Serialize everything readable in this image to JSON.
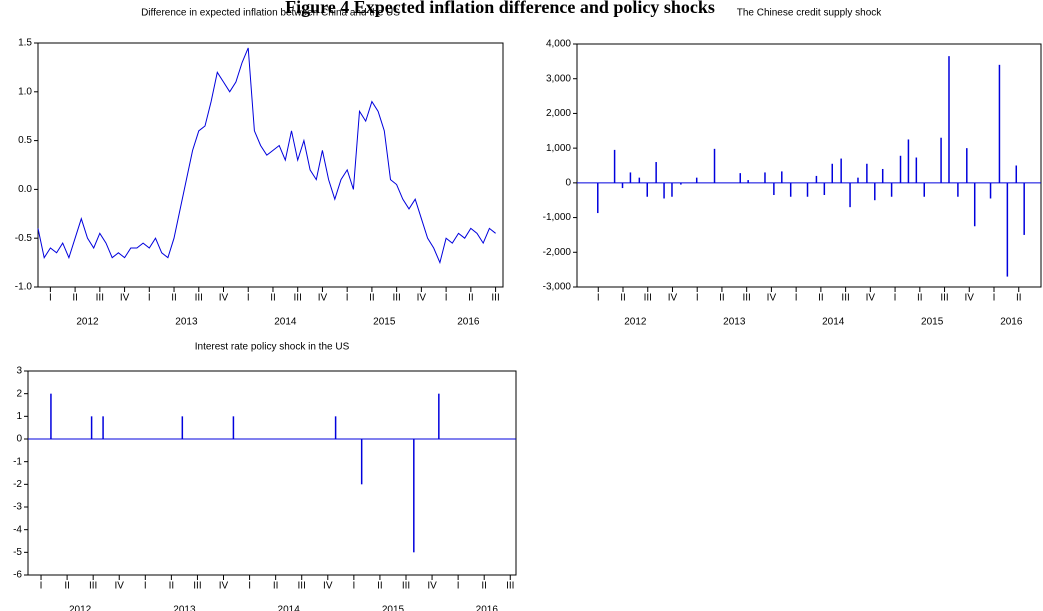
{
  "figure_title": "Figure 4 Expected inflation difference and policy shocks",
  "chart_data": [
    {
      "type": "line",
      "title": "Difference in expected inflation between China and the US",
      "color": "#0000dd",
      "x": [
        2012,
        2012.0625,
        2012.125,
        2012.1875,
        2012.25,
        2012.3125,
        2012.375,
        2012.4375,
        2012.5,
        2012.5625,
        2012.625,
        2012.6875,
        2012.75,
        2012.8125,
        2012.875,
        2012.9375,
        2013,
        2013.0625,
        2013.125,
        2013.1875,
        2013.25,
        2013.3125,
        2013.375,
        2013.4375,
        2013.5,
        2013.5625,
        2013.625,
        2013.6875,
        2013.75,
        2013.8125,
        2013.875,
        2013.9375,
        2014,
        2014.0625,
        2014.125,
        2014.1875,
        2014.25,
        2014.3125,
        2014.375,
        2014.4375,
        2014.5,
        2014.5625,
        2014.625,
        2014.6875,
        2014.75,
        2014.8125,
        2014.875,
        2014.9375,
        2015,
        2015.0625,
        2015.125,
        2015.1875,
        2015.25,
        2015.3125,
        2015.375,
        2015.4375,
        2015.5,
        2015.5625,
        2015.625,
        2015.6875,
        2015.75,
        2015.8125,
        2015.875,
        2015.9375,
        2016,
        2016.0625,
        2016.125,
        2016.1875,
        2016.25,
        2016.3125,
        2016.375,
        2016.4375,
        2016.5,
        2016.5625,
        2016.625
      ],
      "values": [
        -0.4,
        -0.7,
        -0.6,
        -0.65,
        -0.55,
        -0.7,
        -0.5,
        -0.3,
        -0.5,
        -0.6,
        -0.45,
        -0.55,
        -0.7,
        -0.65,
        -0.7,
        -0.6,
        -0.6,
        -0.55,
        -0.6,
        -0.5,
        -0.65,
        -0.7,
        -0.5,
        -0.2,
        0.1,
        0.4,
        0.6,
        0.65,
        0.9,
        1.2,
        1.1,
        1.0,
        1.1,
        1.3,
        1.45,
        0.6,
        0.45,
        0.35,
        0.4,
        0.45,
        0.3,
        0.6,
        0.3,
        0.5,
        0.2,
        0.1,
        0.4,
        0.1,
        -0.1,
        0.1,
        0.2,
        0.0,
        0.8,
        0.7,
        0.9,
        0.8,
        0.6,
        0.1,
        0.05,
        -0.1,
        -0.2,
        -0.1,
        -0.3,
        -0.5,
        -0.6,
        -0.75,
        -0.5,
        -0.55,
        -0.45,
        -0.5,
        -0.4,
        -0.45,
        -0.55,
        -0.4,
        -0.45
      ],
      "xlim": [
        2012.0,
        2016.7
      ],
      "ylim": [
        -1.0,
        1.5
      ],
      "yticks": [
        {
          "value": -1.0,
          "label": "-1.0"
        },
        -0.5,
        {
          "value": 0.0,
          "label": "0.0"
        },
        0.5,
        {
          "value": 1.0,
          "label": "1.0"
        },
        1.5
      ],
      "xticks": [
        {
          "value": 2012.125,
          "label": "I"
        },
        {
          "value": 2012.375,
          "label": "II"
        },
        {
          "value": 2012.625,
          "label": "III"
        },
        {
          "value": 2012.875,
          "label": "IV"
        },
        {
          "value": 2013.125,
          "label": "I"
        },
        {
          "value": 2013.375,
          "label": "II"
        },
        {
          "value": 2013.625,
          "label": "III"
        },
        {
          "value": 2013.875,
          "label": "IV"
        },
        {
          "value": 2014.125,
          "label": "I"
        },
        {
          "value": 2014.375,
          "label": "II"
        },
        {
          "value": 2014.625,
          "label": "III"
        },
        {
          "value": 2014.875,
          "label": "IV"
        },
        {
          "value": 2015.125,
          "label": "I"
        },
        {
          "value": 2015.375,
          "label": "II"
        },
        {
          "value": 2015.625,
          "label": "III"
        },
        {
          "value": 2015.875,
          "label": "IV"
        },
        {
          "value": 2016.125,
          "label": "I"
        },
        {
          "value": 2016.375,
          "label": "II"
        },
        {
          "value": 2016.625,
          "label": "III"
        }
      ],
      "x_year_labels": [
        {
          "value": 2012.5,
          "label": "2012"
        },
        {
          "value": 2013.5,
          "label": "2013"
        },
        {
          "value": 2014.5,
          "label": "2014"
        },
        {
          "value": 2015.5,
          "label": "2015"
        },
        {
          "value": 2016.35,
          "label": "2016"
        }
      ]
    },
    {
      "type": "spike",
      "title": "The Chinese credit supply shock",
      "color": "#0000dd",
      "x": [
        2012.12,
        2012.29,
        2012.37,
        2012.45,
        2012.54,
        2012.62,
        2012.71,
        2012.79,
        2012.87,
        2012.96,
        2013.12,
        2013.3,
        2013.56,
        2013.64,
        2013.81,
        2013.9,
        2013.98,
        2014.07,
        2014.24,
        2014.33,
        2014.41,
        2014.49,
        2014.58,
        2014.67,
        2014.75,
        2014.84,
        2014.92,
        2015.0,
        2015.09,
        2015.18,
        2015.26,
        2015.34,
        2015.42,
        2015.59,
        2015.67,
        2015.76,
        2015.85,
        2015.93,
        2016.09,
        2016.18,
        2016.26,
        2016.35,
        2016.43
      ],
      "values": [
        -870,
        950,
        -150,
        300,
        150,
        -400,
        600,
        -450,
        -400,
        -50,
        150,
        980,
        280,
        80,
        300,
        -350,
        330,
        -400,
        -400,
        200,
        -350,
        550,
        700,
        -700,
        150,
        550,
        -500,
        400,
        -400,
        780,
        1250,
        730,
        -400,
        1300,
        3650,
        -400,
        1000,
        -1250,
        -450,
        3400,
        -2700,
        500,
        -1500
      ],
      "xlim": [
        2011.91,
        2016.6
      ],
      "ylim": [
        -3000,
        4000
      ],
      "yticks": [
        {
          "value": -3000,
          "label": "-3,000"
        },
        {
          "value": -2000,
          "label": "-2,000"
        },
        {
          "value": -1000,
          "label": "-1,000"
        },
        0,
        {
          "value": 1000,
          "label": "1,000"
        },
        {
          "value": 2000,
          "label": "2,000"
        },
        {
          "value": 3000,
          "label": "3,000"
        },
        {
          "value": 4000,
          "label": "4,000"
        }
      ],
      "xticks": [
        {
          "value": 2012.125,
          "label": "I"
        },
        {
          "value": 2012.375,
          "label": "II"
        },
        {
          "value": 2012.625,
          "label": "III"
        },
        {
          "value": 2012.875,
          "label": "IV"
        },
        {
          "value": 2013.125,
          "label": "I"
        },
        {
          "value": 2013.375,
          "label": "II"
        },
        {
          "value": 2013.625,
          "label": "III"
        },
        {
          "value": 2013.875,
          "label": "IV"
        },
        {
          "value": 2014.125,
          "label": "I"
        },
        {
          "value": 2014.375,
          "label": "II"
        },
        {
          "value": 2014.625,
          "label": "III"
        },
        {
          "value": 2014.875,
          "label": "IV"
        },
        {
          "value": 2015.125,
          "label": "I"
        },
        {
          "value": 2015.375,
          "label": "II"
        },
        {
          "value": 2015.625,
          "label": "III"
        },
        {
          "value": 2015.875,
          "label": "IV"
        },
        {
          "value": 2016.125,
          "label": "I"
        },
        {
          "value": 2016.375,
          "label": "II"
        }
      ],
      "x_year_labels": [
        {
          "value": 2012.5,
          "label": "2012"
        },
        {
          "value": 2013.5,
          "label": "2013"
        },
        {
          "value": 2014.5,
          "label": "2014"
        },
        {
          "value": 2015.5,
          "label": "2015"
        },
        {
          "value": 2016.3,
          "label": "2016"
        }
      ]
    },
    {
      "type": "spike",
      "title": "Interest rate policy shock in the US",
      "color": "#0000dd",
      "x": [
        2012.22,
        2012.61,
        2012.72,
        2013.48,
        2013.97,
        2014.95,
        2015.2,
        2015.7,
        2015.94
      ],
      "values": [
        2,
        1,
        1,
        1,
        1,
        1,
        -2,
        -5,
        2
      ],
      "xlim": [
        2012.0,
        2016.68
      ],
      "ylim": [
        -6,
        3
      ],
      "yticks": [
        -6,
        -5,
        -4,
        -3,
        -2,
        -1,
        0,
        1,
        2,
        3
      ],
      "xticks": [
        {
          "value": 2012.125,
          "label": "I"
        },
        {
          "value": 2012.375,
          "label": "II"
        },
        {
          "value": 2012.625,
          "label": "III"
        },
        {
          "value": 2012.875,
          "label": "IV"
        },
        {
          "value": 2013.125,
          "label": "I"
        },
        {
          "value": 2013.375,
          "label": "II"
        },
        {
          "value": 2013.625,
          "label": "III"
        },
        {
          "value": 2013.875,
          "label": "IV"
        },
        {
          "value": 2014.125,
          "label": "I"
        },
        {
          "value": 2014.375,
          "label": "II"
        },
        {
          "value": 2014.625,
          "label": "III"
        },
        {
          "value": 2014.875,
          "label": "IV"
        },
        {
          "value": 2015.125,
          "label": "I"
        },
        {
          "value": 2015.375,
          "label": "II"
        },
        {
          "value": 2015.625,
          "label": "III"
        },
        {
          "value": 2015.875,
          "label": "IV"
        },
        {
          "value": 2016.125,
          "label": "I"
        },
        {
          "value": 2016.375,
          "label": "II"
        },
        {
          "value": 2016.625,
          "label": "III"
        }
      ],
      "x_year_labels": [
        {
          "value": 2012.5,
          "label": "2012"
        },
        {
          "value": 2013.5,
          "label": "2013"
        },
        {
          "value": 2014.5,
          "label": "2014"
        },
        {
          "value": 2015.5,
          "label": "2015"
        },
        {
          "value": 2016.4,
          "label": "2016"
        }
      ]
    }
  ]
}
